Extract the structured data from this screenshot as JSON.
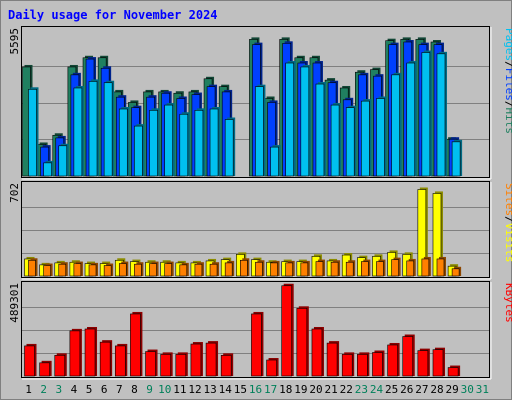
{
  "chart_data": {
    "type": "bar",
    "title": "Daily usage for November 2024",
    "categories": [
      "1",
      "2",
      "3",
      "4",
      "5",
      "6",
      "7",
      "8",
      "9",
      "10",
      "11",
      "12",
      "13",
      "14",
      "15",
      "16",
      "17",
      "18",
      "19",
      "20",
      "21",
      "22",
      "23",
      "24",
      "25",
      "26",
      "27",
      "28",
      "29",
      "30",
      "31"
    ],
    "weekend_days": [
      "2",
      "3",
      "9",
      "10",
      "16",
      "17",
      "23",
      "24",
      "30",
      "31"
    ],
    "panels": [
      {
        "name": "requests",
        "ymax_label": "5595",
        "ylim": [
          0,
          5595
        ],
        "legend": [
          {
            "text": "Pages",
            "color": "#00c0f0"
          },
          {
            "text": "/",
            "color": "#000000"
          },
          {
            "text": "Files",
            "color": "#0040ff"
          },
          {
            "text": "/",
            "color": "#000000"
          },
          {
            "text": "Hits",
            "color": "#208060"
          }
        ],
        "series": [
          {
            "name": "Hits",
            "color": "#208060",
            "values": [
              4150,
              1200,
              1550,
              4150,
              4500,
              4500,
              3200,
              2800,
              3200,
              3200,
              3150,
              3200,
              3700,
              3400,
              0,
              5200,
              2950,
              5200,
              4500,
              4500,
              3650,
              3350,
              3950,
              4050,
              5150,
              5200,
              5200,
              5100,
              1400,
              0,
              0
            ]
          },
          {
            "name": "Files",
            "color": "#0040ff",
            "values": [
              0,
              1100,
              1450,
              3850,
              4450,
              4100,
              3000,
              2600,
              3000,
              3150,
              2950,
              3100,
              3400,
              3200,
              0,
              5000,
              2800,
              5050,
              4300,
              4300,
              3550,
              2900,
              3850,
              3800,
              5000,
              5100,
              5000,
              5000,
              1400,
              0,
              0
            ]
          },
          {
            "name": "Pages",
            "color": "#00c0f0",
            "values": [
              3300,
              500,
              1150,
              3350,
              3600,
              3550,
              2550,
              1900,
              2500,
              2700,
              2350,
              2500,
              2550,
              2150,
              0,
              3400,
              1100,
              4300,
              4150,
              3500,
              2700,
              2600,
              2850,
              2950,
              3850,
              4300,
              4700,
              4650,
              1300,
              0,
              0
            ]
          }
        ]
      },
      {
        "name": "visitors",
        "ymax_label": "702",
        "ylim": [
          0,
          702
        ],
        "legend": [
          {
            "text": "Sites",
            "color": "#ff8000"
          },
          {
            "text": "/",
            "color": "#000000"
          },
          {
            "text": "Visits",
            "color": "#ffff00"
          }
        ],
        "series": [
          {
            "name": "Visits",
            "color": "#ffff00",
            "values": [
              130,
              85,
              100,
              105,
              95,
              95,
              120,
              110,
              105,
              105,
              100,
              100,
              115,
              125,
              165,
              125,
              105,
              110,
              110,
              150,
              115,
              160,
              140,
              150,
              180,
              165,
              660,
              630,
              75,
              0,
              0
            ]
          },
          {
            "name": "Sites",
            "color": "#ff8000",
            "values": [
              120,
              80,
              90,
              95,
              85,
              80,
              95,
              90,
              95,
              95,
              85,
              90,
              90,
              100,
              120,
              105,
              100,
              100,
              100,
              110,
              105,
              105,
              110,
              110,
              125,
              115,
              130,
              130,
              55,
              0,
              0
            ]
          }
        ]
      },
      {
        "name": "kbytes",
        "ymax_label": "489301",
        "ylim": [
          0,
          489301
        ],
        "legend": [
          {
            "text": "KBytes",
            "color": "#ff0000"
          }
        ],
        "series": [
          {
            "name": "KBytes",
            "color": "#ff0000",
            "values": [
              160000,
              70000,
              110000,
              240000,
              250000,
              180000,
              160000,
              330000,
              130000,
              115000,
              115000,
              170000,
              175000,
              110000,
              0,
              330000,
              85000,
              480000,
              360000,
              250000,
              175000,
              115000,
              115000,
              125000,
              165000,
              210000,
              135000,
              140000,
              45000,
              0,
              0
            ]
          }
        ]
      }
    ]
  }
}
